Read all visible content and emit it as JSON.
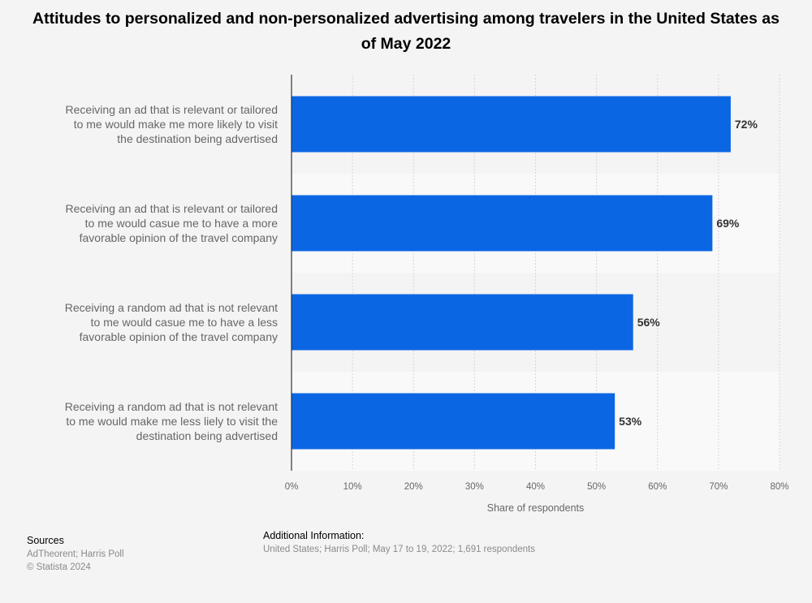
{
  "chart_data": {
    "type": "bar",
    "orientation": "horizontal",
    "title": "Attitudes to personalized and non-personalized advertising among travelers in the United States as of May 2022",
    "categories": [
      [
        "Receiving an ad that is relevant or tailored",
        "to me would make me more likely to visit",
        "the destination being advertised"
      ],
      [
        "Receiving an ad that is relevant or tailored",
        "to me would casue me to have a more",
        "favorable opinion of the travel company"
      ],
      [
        "Receiving a random ad that is not relevant",
        "to me would casue me to have a less",
        "favorable opinion of the travel company"
      ],
      [
        "Receiving a random ad that is not relevant",
        "to me would make me less liely to visit the",
        "destination being advertised"
      ]
    ],
    "values": [
      72,
      69,
      56,
      53
    ],
    "value_labels": [
      "72%",
      "69%",
      "56%",
      "53%"
    ],
    "xlim": [
      0,
      80
    ],
    "xticks": [
      "0%",
      "10%",
      "20%",
      "30%",
      "40%",
      "50%",
      "60%",
      "70%",
      "80%"
    ],
    "xlabel": "Share of respondents",
    "ylabel": "",
    "bar_color": "#0b66e4",
    "grid": true
  },
  "footer": {
    "sources_heading": "Sources",
    "sources_text": "AdTheorent; Harris Poll",
    "copyright": "© Statista 2024",
    "info_heading": "Additional Information:",
    "info_text": "United States; Harris Poll; May 17 to 19, 2022; 1,691 respondents"
  }
}
